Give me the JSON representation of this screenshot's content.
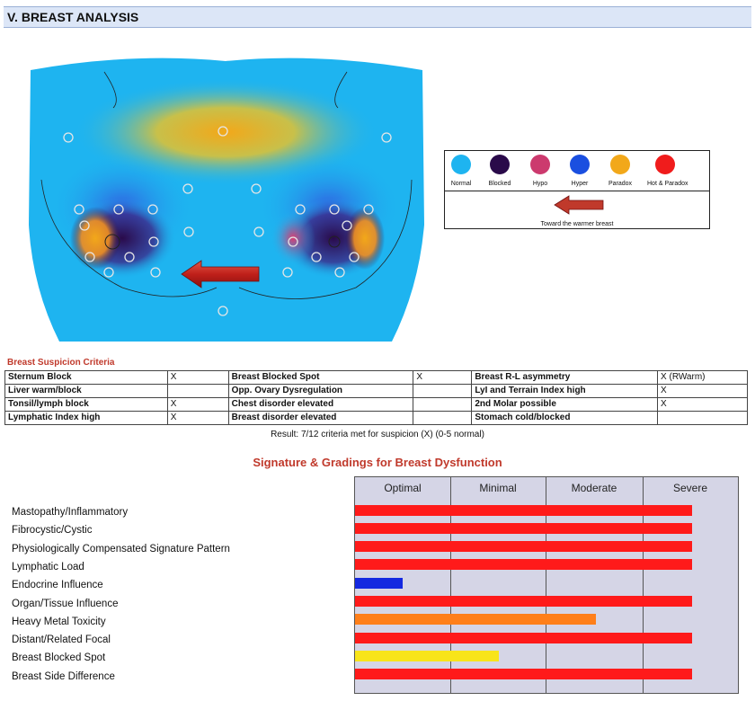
{
  "section": {
    "title": "V. BREAST ANALYSIS"
  },
  "legend": {
    "items": [
      {
        "label": "Normal",
        "color": "#1eb4f0"
      },
      {
        "label": "Blocked",
        "color": "#2a0a4a"
      },
      {
        "label": "Hypo",
        "color": "#cc3a6e"
      },
      {
        "label": "Hyper",
        "color": "#1a4fe0"
      },
      {
        "label": "Paradox",
        "color": "#f2a81a"
      },
      {
        "label": "Hot & Paradox",
        "color": "#f01c1c"
      }
    ],
    "arrow_caption": "Toward the warmer breast",
    "arrow_color": "#c0392b"
  },
  "criteria": {
    "title": "Breast Suspicion Criteria",
    "rows": [
      [
        {
          "label": "Sternum Block",
          "mark": "X"
        },
        {
          "label": "Breast Blocked Spot",
          "mark": "X"
        },
        {
          "label": "Breast R-L asymmetry",
          "mark": "X (RWarm)"
        }
      ],
      [
        {
          "label": "Liver warm/block",
          "mark": ""
        },
        {
          "label": "Opp. Ovary Dysregulation",
          "mark": ""
        },
        {
          "label": "LyI and Terrain Index high",
          "mark": "X"
        }
      ],
      [
        {
          "label": "Tonsil/lymph block",
          "mark": "X"
        },
        {
          "label": "Chest disorder elevated",
          "mark": ""
        },
        {
          "label": "2nd Molar possible",
          "mark": "X"
        }
      ],
      [
        {
          "label": "Lymphatic Index high",
          "mark": "X"
        },
        {
          "label": "Breast disorder elevated",
          "mark": ""
        },
        {
          "label": "Stomach cold/blocked",
          "mark": ""
        }
      ]
    ],
    "result": "Result:  7/12 criteria met for suspicion (X) (0-5 normal)"
  },
  "signature": {
    "title": "Signature & Gradings for Breast Dysfunction",
    "columns": [
      "Optimal",
      "Minimal",
      "Moderate",
      "Severe"
    ],
    "rows": [
      {
        "label": "Mastopathy/Inflammatory",
        "value": 0.88,
        "color": "#ff1a1a"
      },
      {
        "label": "Fibrocystic/Cystic",
        "value": 0.88,
        "color": "#ff1a1a"
      },
      {
        "label": "Physiologically Compensated Signature Pattern",
        "value": 0.88,
        "color": "#ff1a1a"
      },
      {
        "label": "Lymphatic Load",
        "value": 0.88,
        "color": "#ff1a1a"
      },
      {
        "label": "Endocrine Influence",
        "value": 0.125,
        "color": "#1428e0"
      },
      {
        "label": "Organ/Tissue Influence",
        "value": 0.88,
        "color": "#ff1a1a"
      },
      {
        "label": "Heavy Metal Toxicity",
        "value": 0.63,
        "color": "#ff7f1a"
      },
      {
        "label": "Distant/Related Focal",
        "value": 0.88,
        "color": "#ff1a1a"
      },
      {
        "label": "Breast Blocked Spot",
        "value": 0.375,
        "color": "#f8e41a"
      },
      {
        "label": "Breast Side Difference",
        "value": 0.88,
        "color": "#ff1a1a"
      }
    ]
  }
}
